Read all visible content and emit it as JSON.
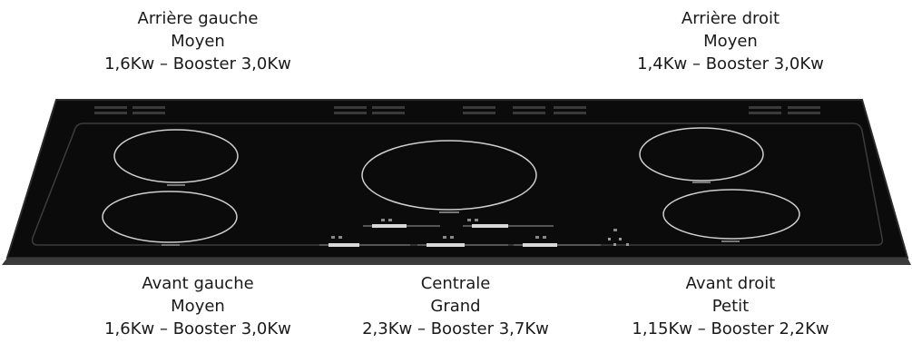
{
  "zones": {
    "rear_left": {
      "name": "Arrière gauche",
      "size": "Moyen",
      "power": "1,6Kw – Booster 3,0Kw"
    },
    "rear_right": {
      "name": "Arrière droit",
      "size": "Moyen",
      "power": "1,4Kw – Booster 3,0Kw"
    },
    "front_left": {
      "name": "Avant gauche",
      "size": "Moyen",
      "power": "1,6Kw – Booster 3,0Kw"
    },
    "center": {
      "name": "Centrale",
      "size": "Grand",
      "power": "2,3Kw – Booster 3,7Kw"
    },
    "front_right": {
      "name": "Avant droit",
      "size": "Petit",
      "power": "1,15Kw – Booster 2,2Kw"
    }
  },
  "colors": {
    "glass": "#0b0b0b",
    "edge": "#2a2a2a",
    "ring": "#cfcfcf",
    "text": "#1a1a1a"
  }
}
